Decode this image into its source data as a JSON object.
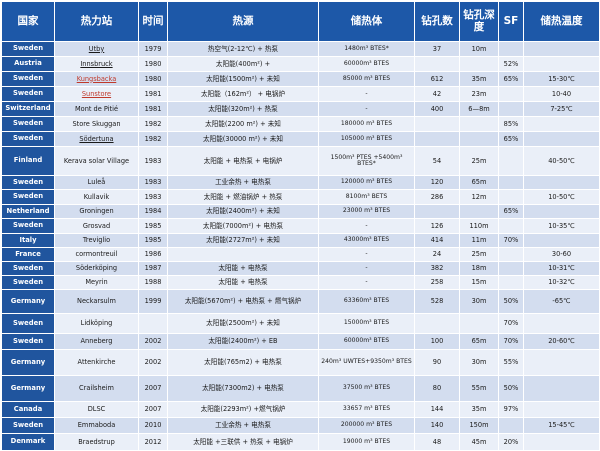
{
  "headers": [
    "国家",
    "热力站",
    "时间",
    "热源",
    "储热体",
    "钻孔数",
    "钻孔深度",
    "SF",
    "储热温度"
  ],
  "rows": [
    {
      "country": "Sweden",
      "plant": "Utby",
      "year": "1979",
      "source": "热空气(2-12℃) + 热泵",
      "storage": "1480m³ BTES*",
      "boreholes": "37",
      "depth": "10m",
      "sf": "",
      "temp": ""
    },
    {
      "country": "Austria",
      "plant": "Innsbruck",
      "year": "1980",
      "source": "太阳能(400m²) +",
      "storage": "60000m³ BTES",
      "boreholes": "",
      "depth": "",
      "sf": "52%",
      "temp": ""
    },
    {
      "country": "Sweden",
      "plant": "Kungsbacka",
      "year": "1980",
      "source": "太阳能(1500m²) + 未知",
      "storage": "85000 m³ BTES",
      "boreholes": "612",
      "depth": "35m",
      "sf": "65%",
      "temp": "15-30℃"
    },
    {
      "country": "Sweden",
      "plant": "Sunstore",
      "year": "1981",
      "source": "太阳能（162m²） + 电锅炉",
      "storage": "-",
      "boreholes": "42",
      "depth": "23m",
      "sf": "",
      "temp": "10-40"
    },
    {
      "country": "Switzerland",
      "plant": "Mont de Pitié",
      "year": "1981",
      "source": "太阳能(320m²) + 热泵",
      "storage": "-",
      "boreholes": "400",
      "depth": "6—8m",
      "sf": "",
      "temp": "7-25℃"
    },
    {
      "country": "Sweden",
      "plant": "Store Skuggan",
      "year": "1982",
      "source": "太阳能(2200 m²) + 未知",
      "storage": "180000 m³ BTES",
      "boreholes": "",
      "depth": "",
      "sf": "85%",
      "temp": ""
    },
    {
      "country": "Sweden",
      "plant": "Södertuna",
      "year": "1982",
      "source": "太阳能(30000 m²) + 未知",
      "storage": "105000 m³ BTES",
      "boreholes": "",
      "depth": "",
      "sf": "65%",
      "temp": ""
    },
    {
      "country": "Finland",
      "plant": "Kerava solar Village",
      "year": "1983",
      "source": "太阳能 + 电热泵 + 电锅炉",
      "storage": "1500m³ PTES +5400m³ BTES*",
      "boreholes": "54",
      "depth": "25m",
      "sf": "",
      "temp": "40-50℃"
    },
    {
      "country": "Sweden",
      "plant": "Luleå",
      "year": "1983",
      "source": "工业余热 + 电热泵",
      "storage": "120000 m³ BTES",
      "boreholes": "120",
      "depth": "65m",
      "sf": "",
      "temp": ""
    },
    {
      "country": "Sweden",
      "plant": "Kullavik",
      "year": "1983",
      "source": "太阳能 + 燃油锅炉 + 热泵",
      "storage": "8100m³ BETS",
      "boreholes": "286",
      "depth": "12m",
      "sf": "",
      "temp": "10-50℃"
    },
    {
      "country": "Netherland",
      "plant": "Groningen",
      "year": "1984",
      "source": "太阳能(2400m²) + 未知",
      "storage": "23000 m³ BTES",
      "boreholes": "",
      "depth": "",
      "sf": "65%",
      "temp": ""
    },
    {
      "country": "Sweden",
      "plant": "Grosvad",
      "year": "1985",
      "source": "太阳能(7000m²) + 电热泵",
      "storage": "-",
      "boreholes": "126",
      "depth": "110m",
      "sf": "",
      "temp": "10-35℃"
    },
    {
      "country": "Italy",
      "plant": "Treviglio",
      "year": "1985",
      "source": "太阳能(2727m²) + 未知",
      "storage": "43000m³ BTES",
      "boreholes": "414",
      "depth": "11m",
      "sf": "70%",
      "temp": ""
    },
    {
      "country": "France",
      "plant": "cormontreuil",
      "year": "1986",
      "source": "",
      "storage": "-",
      "boreholes": "24",
      "depth": "25m",
      "sf": "",
      "temp": "30-60"
    },
    {
      "country": "Sweden",
      "plant": "Söderköping",
      "year": "1987",
      "source": "太阳能 + 电热泵",
      "storage": "-",
      "boreholes": "382",
      "depth": "18m",
      "sf": "",
      "temp": "10-31℃"
    },
    {
      "country": "Sweden",
      "plant": "Meyrin",
      "year": "1988",
      "source": "太阳能 + 电热泵",
      "storage": "-",
      "boreholes": "258",
      "depth": "15m",
      "sf": "",
      "temp": "10-32℃"
    },
    {
      "country": "Germany",
      "plant": "Neckarsulm",
      "year": "1999",
      "source": "太阳能(5670m²) + 电热泵 + 燃气锅炉",
      "storage": "63360m³ BTES",
      "boreholes": "528",
      "depth": "30m",
      "sf": "50%",
      "temp": "-65℃"
    },
    {
      "country": "Sweden",
      "plant": "Lidköping",
      "year": "",
      "source": "太阳能(2500m²) + 未知",
      "storage": "15000m³ BTES",
      "boreholes": "",
      "depth": "",
      "sf": "70%",
      "temp": ""
    },
    {
      "country": "Sweden",
      "plant": "Anneberg",
      "year": "2002",
      "source": "太阳能(2400m²) + EB",
      "storage": "60000m³ BTES",
      "boreholes": "100",
      "depth": "65m",
      "sf": "70%",
      "temp": "20-60℃"
    },
    {
      "country": "Germany",
      "plant": "Attenkirche",
      "year": "2002",
      "source": "太阳能(765m2) + 电热泵",
      "storage": "240m³ UWTES+9350m³ BTES",
      "boreholes": "90",
      "depth": "30m",
      "sf": "55%",
      "temp": ""
    },
    {
      "country": "Germany",
      "plant": "Crailsheim",
      "year": "2007",
      "source": "太阳能(7300m2) + 电热泵",
      "storage": "37500 m³ BTES",
      "boreholes": "80",
      "depth": "55m",
      "sf": "50%",
      "temp": ""
    },
    {
      "country": "Canada",
      "plant": "DLSC",
      "year": "2007",
      "source": "太阳能(2293m²) +燃气锅炉",
      "storage": "33657 m³ BTES",
      "boreholes": "144",
      "depth": "35m",
      "sf": "97%",
      "temp": ""
    },
    {
      "country": "Sweden",
      "plant": "Emmaboda",
      "year": "2010",
      "source": "工业余热 + 电热泵",
      "storage": "200000 m³ BTES",
      "boreholes": "140",
      "depth": "150m",
      "sf": "",
      "temp": "15-45℃"
    },
    {
      "country": "Denmark",
      "plant": "Braedstrup",
      "year": "2012",
      "source": "太阳能 +三联供 + 热泵 + 电锅炉",
      "storage": "19000 m³ BTES",
      "boreholes": "48",
      "depth": "45m",
      "sf": "20%",
      "temp": ""
    }
  ]
}
